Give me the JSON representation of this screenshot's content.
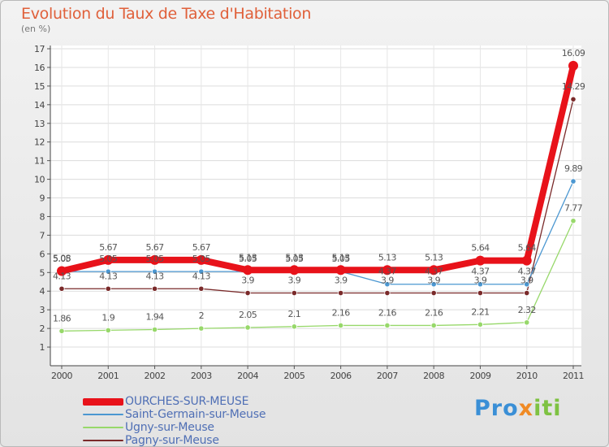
{
  "header": {
    "title": "Evolution du Taux de Taxe d'Habitation",
    "unit": "(en %)"
  },
  "logo": {
    "part1": "Pro",
    "part2": "x",
    "part3": "iti"
  },
  "chart_data": {
    "type": "line",
    "title": "Evolution du Taux de Taxe d'Habitation",
    "ylabel": "(en %)",
    "xlabel": "",
    "x": [
      "2000",
      "2001",
      "2002",
      "2003",
      "2004",
      "2005",
      "2006",
      "2007",
      "2008",
      "2009",
      "2010",
      "2011"
    ],
    "ylim": [
      0,
      17
    ],
    "yticks": [
      1,
      2,
      3,
      4,
      5,
      6,
      7,
      8,
      9,
      10,
      11,
      12,
      13,
      14,
      15,
      16,
      17
    ],
    "grid": true,
    "legend_position": "bottom-left",
    "series": [
      {
        "name": "OURCHES-SUR-MEUSE",
        "color": "#e8121a",
        "values": [
          5.08,
          5.67,
          5.67,
          5.67,
          5.13,
          5.13,
          5.13,
          5.13,
          5.13,
          5.64,
          5.64,
          16.09
        ],
        "labels": [
          "5.08",
          "5.67",
          "5.67",
          "5.67",
          "5.13",
          "5.13",
          "5.13",
          "5.13",
          "5.13",
          "5.64",
          "5.64",
          "16.09"
        ]
      },
      {
        "name": "Saint-Germain-sur-Meuse",
        "color": "#4b97d1",
        "values": [
          5.05,
          5.05,
          5.05,
          5.05,
          5.05,
          5.05,
          5.05,
          4.37,
          4.37,
          4.37,
          4.37,
          9.89
        ],
        "labels": [
          "5.05",
          "5.05",
          "5.05",
          "5.05",
          "5.05",
          "5.05",
          "5.05",
          "4.37",
          "4.37",
          "4.37",
          "4.37",
          "9.89"
        ]
      },
      {
        "name": "Ugny-sur-Meuse",
        "color": "#97d86a",
        "values": [
          1.86,
          1.9,
          1.94,
          2,
          2.05,
          2.1,
          2.16,
          2.16,
          2.16,
          2.21,
          2.32,
          7.77
        ],
        "labels": [
          "1.86",
          "1.9",
          "1.94",
          "2",
          "2.05",
          "2.1",
          "2.16",
          "2.16",
          "2.16",
          "2.21",
          "2.32",
          "7.77"
        ]
      },
      {
        "name": "Pagny-sur-Meuse",
        "color": "#7a2a2a",
        "values": [
          4.13,
          4.13,
          4.13,
          4.13,
          3.9,
          3.9,
          3.9,
          3.9,
          3.9,
          3.9,
          3.9,
          14.29
        ],
        "labels": [
          "4.13",
          "4.13",
          "4.13",
          "4.13",
          "3.9",
          "3.9",
          "3.9",
          "3.9",
          "3.9",
          "3.9",
          "3.9",
          "14.29"
        ]
      }
    ]
  }
}
